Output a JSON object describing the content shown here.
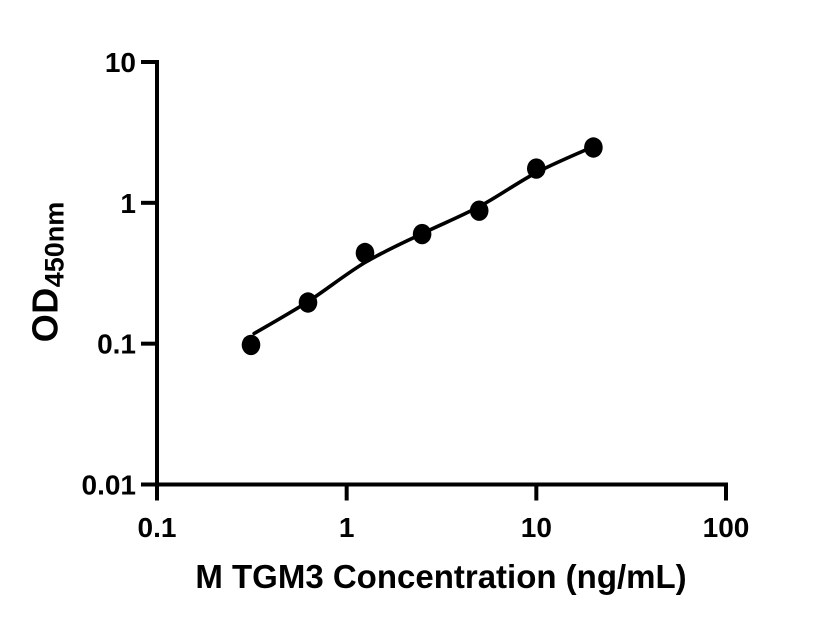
{
  "figure": {
    "background": "#ffffff",
    "ink_color": "#000000"
  },
  "chart_data": {
    "type": "scatter",
    "title": "",
    "xlabel": "M TGM3 Concentration (ng/mL)",
    "ylabel_main": "OD",
    "ylabel_sub": "450nm",
    "x_scale": "log",
    "y_scale": "log",
    "xlim": [
      0.1,
      100
    ],
    "ylim": [
      0.01,
      10
    ],
    "grid": false,
    "legend": null,
    "x_ticks": [
      {
        "value": 0.1,
        "label": "0.1"
      },
      {
        "value": 1,
        "label": "1"
      },
      {
        "value": 10,
        "label": "10"
      },
      {
        "value": 100,
        "label": "100"
      }
    ],
    "y_ticks": [
      {
        "value": 0.01,
        "label": "0.01"
      },
      {
        "value": 0.1,
        "label": "0.1"
      },
      {
        "value": 1,
        "label": "1"
      },
      {
        "value": 10,
        "label": "10"
      }
    ],
    "points": [
      {
        "x": 0.313,
        "y": 0.098
      },
      {
        "x": 0.625,
        "y": 0.196
      },
      {
        "x": 1.25,
        "y": 0.44
      },
      {
        "x": 2.5,
        "y": 0.6
      },
      {
        "x": 5,
        "y": 0.88
      },
      {
        "x": 10,
        "y": 1.75
      },
      {
        "x": 20,
        "y": 2.47
      }
    ],
    "fit_curve": [
      [
        0.325,
        0.118
      ],
      [
        0.625,
        0.199
      ],
      [
        1.25,
        0.377
      ],
      [
        2.5,
        0.605
      ],
      [
        5,
        0.94
      ],
      [
        10,
        1.64
      ],
      [
        20,
        2.51
      ]
    ],
    "marker": {
      "shape": "ellipse",
      "color": "#000000"
    }
  }
}
